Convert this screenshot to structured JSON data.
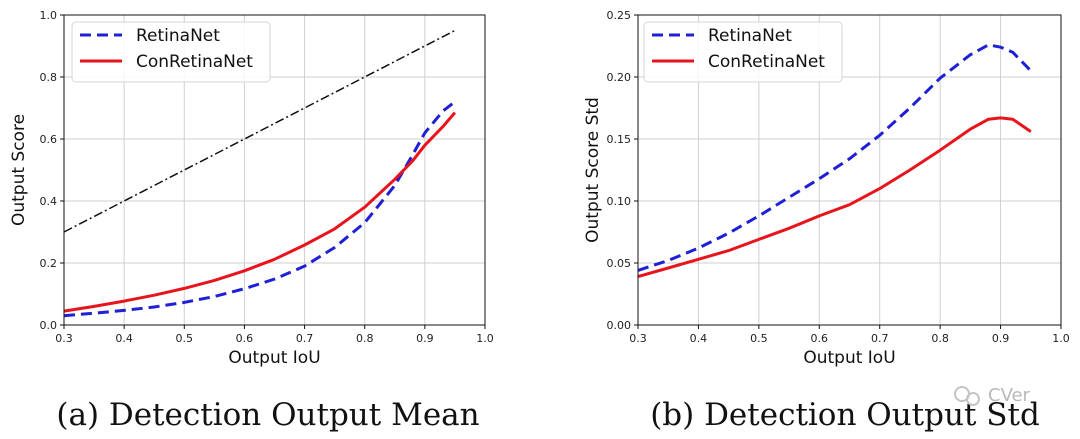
{
  "chart_data": [
    {
      "type": "line",
      "caption": "(a)  Detection Output Mean",
      "xlabel": "Output IoU",
      "ylabel": "Output Score",
      "xlim": [
        0.3,
        1.0
      ],
      "ylim": [
        0.0,
        1.0
      ],
      "xticks": [
        0.3,
        0.4,
        0.5,
        0.6,
        0.7,
        0.8,
        0.9,
        1.0
      ],
      "yticks": [
        0.0,
        0.2,
        0.4,
        0.6,
        0.8,
        1.0
      ],
      "xtick_labels": [
        "0.3",
        "0.4",
        "0.5",
        "0.6",
        "0.7",
        "0.8",
        "0.9",
        "1.0"
      ],
      "ytick_labels": [
        "0.0",
        "0.2",
        "0.4",
        "0.6",
        "0.8",
        "1.0"
      ],
      "grid": true,
      "legend_position": "upper-left",
      "series": [
        {
          "name": "RetinaNet",
          "style": "dashed",
          "color": "#1f1fd6",
          "x": [
            0.3,
            0.35,
            0.4,
            0.45,
            0.5,
            0.55,
            0.6,
            0.65,
            0.7,
            0.75,
            0.8,
            0.85,
            0.88,
            0.9,
            0.93,
            0.95
          ],
          "y": [
            0.03,
            0.038,
            0.047,
            0.058,
            0.073,
            0.092,
            0.117,
            0.148,
            0.19,
            0.25,
            0.33,
            0.45,
            0.55,
            0.62,
            0.69,
            0.72
          ]
        },
        {
          "name": "ConRetinaNet",
          "style": "solid",
          "color": "#e8141c",
          "x": [
            0.3,
            0.35,
            0.4,
            0.45,
            0.5,
            0.55,
            0.6,
            0.65,
            0.7,
            0.75,
            0.8,
            0.85,
            0.88,
            0.9,
            0.93,
            0.95
          ],
          "y": [
            0.045,
            0.06,
            0.077,
            0.096,
            0.118,
            0.144,
            0.175,
            0.212,
            0.258,
            0.31,
            0.38,
            0.47,
            0.53,
            0.58,
            0.64,
            0.685
          ]
        },
        {
          "name": "identity",
          "legend": false,
          "style": "dashdot",
          "color": "#111111",
          "x": [
            0.3,
            0.95
          ],
          "y": [
            0.3,
            0.95
          ]
        }
      ]
    },
    {
      "type": "line",
      "caption": "(b)  Detection Output Std",
      "xlabel": "Output IoU",
      "ylabel": "Output Score Std",
      "xlim": [
        0.3,
        1.0
      ],
      "ylim": [
        0.0,
        0.25
      ],
      "xticks": [
        0.3,
        0.4,
        0.5,
        0.6,
        0.7,
        0.8,
        0.9,
        1.0
      ],
      "yticks": [
        0.0,
        0.05,
        0.1,
        0.15,
        0.2,
        0.25
      ],
      "xtick_labels": [
        "0.3",
        "0.4",
        "0.5",
        "0.6",
        "0.7",
        "0.8",
        "0.9",
        "1.0"
      ],
      "ytick_labels": [
        "0.00",
        "0.05",
        "0.10",
        "0.15",
        "0.20",
        "0.25"
      ],
      "grid": true,
      "legend_position": "upper-left",
      "series": [
        {
          "name": "RetinaNet",
          "style": "dashed",
          "color": "#1f1fd6",
          "x": [
            0.3,
            0.35,
            0.4,
            0.45,
            0.5,
            0.55,
            0.6,
            0.65,
            0.7,
            0.75,
            0.8,
            0.85,
            0.88,
            0.9,
            0.92,
            0.95
          ],
          "y": [
            0.044,
            0.052,
            0.062,
            0.074,
            0.088,
            0.103,
            0.118,
            0.134,
            0.153,
            0.175,
            0.199,
            0.218,
            0.226,
            0.224,
            0.22,
            0.205
          ]
        },
        {
          "name": "ConRetinaNet",
          "style": "solid",
          "color": "#e8141c",
          "x": [
            0.3,
            0.35,
            0.4,
            0.45,
            0.5,
            0.55,
            0.6,
            0.65,
            0.7,
            0.75,
            0.8,
            0.85,
            0.88,
            0.9,
            0.92,
            0.95
          ],
          "y": [
            0.039,
            0.046,
            0.053,
            0.06,
            0.069,
            0.078,
            0.088,
            0.097,
            0.11,
            0.125,
            0.141,
            0.158,
            0.166,
            0.167,
            0.166,
            0.156
          ]
        }
      ]
    }
  ],
  "watermark": {
    "text": "CVer"
  }
}
